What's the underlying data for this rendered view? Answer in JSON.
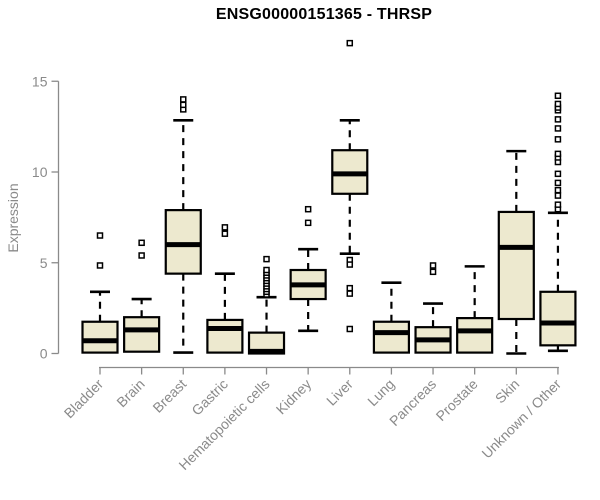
{
  "colors": {
    "box_fill": "#EDE9CF",
    "line": "#000000",
    "axis": "#8a8a8a",
    "background": "#FFFFFF"
  },
  "chart_data": {
    "type": "boxplot",
    "title": "ENSG00000151365 - THRSP",
    "ylabel": "Expression",
    "xlabel": "",
    "ylim": [
      0,
      15
    ],
    "yticks": [
      0,
      5,
      10,
      15
    ],
    "grid": false,
    "legend": "none",
    "series": [
      {
        "label": "Bladder",
        "q1": 0.05,
        "median": 0.7,
        "q3": 1.75,
        "whisker_low": 0.05,
        "whisker_high": 3.4,
        "outliers": [
          4.85,
          6.5
        ]
      },
      {
        "label": "Brain",
        "q1": 0.1,
        "median": 1.3,
        "q3": 2.0,
        "whisker_low": 0.1,
        "whisker_high": 3.0,
        "outliers": [
          5.4,
          6.1
        ]
      },
      {
        "label": "Breast",
        "q1": 4.4,
        "median": 6.0,
        "q3": 7.9,
        "whisker_low": 0.05,
        "whisker_high": 12.85,
        "outliers": [
          13.45,
          13.7,
          14.0
        ]
      },
      {
        "label": "Gastric",
        "q1": 0.05,
        "median": 1.38,
        "q3": 1.85,
        "whisker_low": 0.05,
        "whisker_high": 4.4,
        "outliers": [
          6.6,
          6.95
        ]
      },
      {
        "label": "Hematopoietic cells",
        "q1": 0.0,
        "median": 0.12,
        "q3": 1.15,
        "whisker_low": 0.0,
        "whisker_high": 3.1,
        "outliers": [
          3.25,
          3.4,
          3.55,
          3.7,
          3.85,
          4.0,
          4.15,
          4.3,
          4.45,
          4.6,
          5.2
        ]
      },
      {
        "label": "Kidney",
        "q1": 3.0,
        "median": 3.78,
        "q3": 4.6,
        "whisker_low": 1.25,
        "whisker_high": 5.75,
        "outliers": [
          7.2,
          7.95
        ]
      },
      {
        "label": "Liver",
        "q1": 8.8,
        "median": 9.9,
        "q3": 11.2,
        "whisker_low": 5.5,
        "whisker_high": 12.85,
        "outliers": [
          17.1,
          5.15,
          4.9,
          3.6,
          3.3,
          1.35
        ]
      },
      {
        "label": "Lung",
        "q1": 0.05,
        "median": 1.15,
        "q3": 1.75,
        "whisker_low": 0.05,
        "whisker_high": 3.9,
        "outliers": []
      },
      {
        "label": "Pancreas",
        "q1": 0.05,
        "median": 0.75,
        "q3": 1.45,
        "whisker_low": 0.05,
        "whisker_high": 2.75,
        "outliers": [
          4.5,
          4.85
        ]
      },
      {
        "label": "Prostate",
        "q1": 0.05,
        "median": 1.25,
        "q3": 1.95,
        "whisker_low": 0.05,
        "whisker_high": 4.8,
        "outliers": []
      },
      {
        "label": "Skin",
        "q1": 1.9,
        "median": 5.85,
        "q3": 7.8,
        "whisker_low": 0.0,
        "whisker_high": 11.15,
        "outliers": []
      },
      {
        "label": "Unknown / Other",
        "q1": 0.45,
        "median": 1.68,
        "q3": 3.4,
        "whisker_low": 0.15,
        "whisker_high": 7.75,
        "outliers": [
          7.95,
          8.2,
          8.7,
          9.0,
          9.4,
          9.9,
          10.55,
          10.8,
          11.0,
          11.8,
          12.4,
          12.9,
          13.4,
          13.55,
          13.75,
          14.2
        ]
      }
    ]
  }
}
